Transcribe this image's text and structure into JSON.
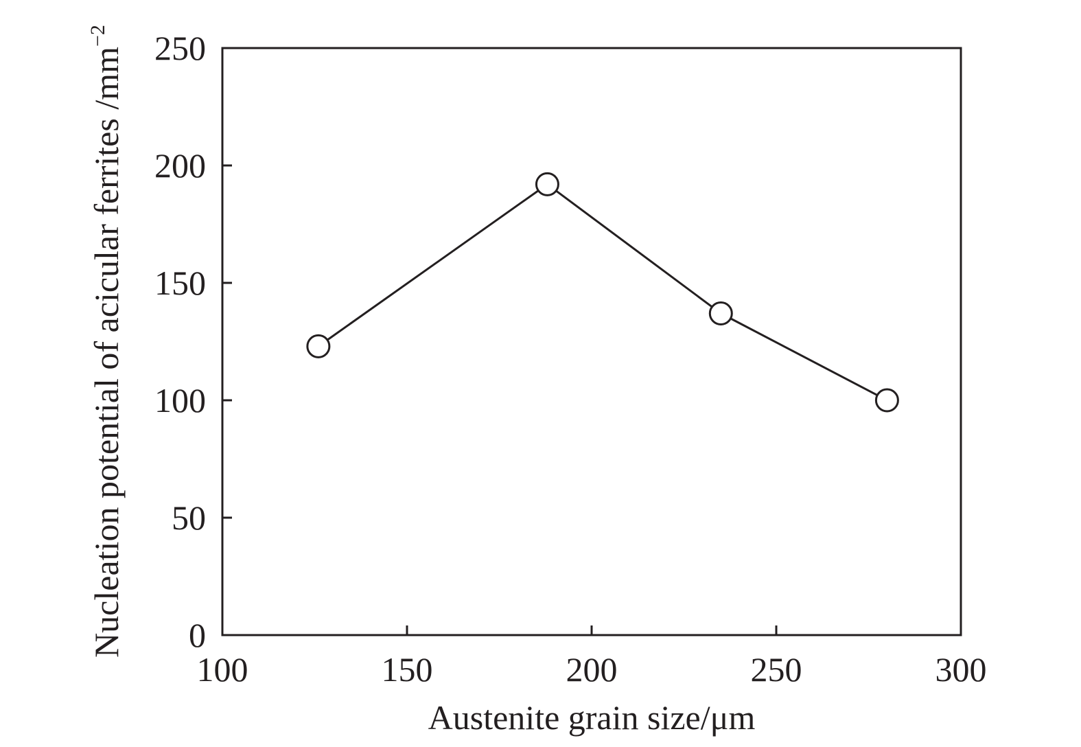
{
  "chart_data": {
    "type": "line",
    "title": "",
    "xlabel": "Austenite grain size/μm",
    "ylabel": {
      "text": "Nucleation potential of acicular ferrites /mm",
      "superscript": "−2"
    },
    "xlim": [
      100,
      300
    ],
    "ylim": [
      0,
      250
    ],
    "xticks": [
      "100",
      "150",
      "200",
      "250",
      "300"
    ],
    "yticks": [
      "0",
      "50",
      "100",
      "150",
      "200",
      "250"
    ],
    "grid": false,
    "legend": "none",
    "marker": "open-circle",
    "line_color": "#231f20",
    "series": [
      {
        "x": [
          126,
          188,
          235,
          280
        ],
        "y": [
          123,
          192,
          137,
          100
        ]
      }
    ]
  }
}
